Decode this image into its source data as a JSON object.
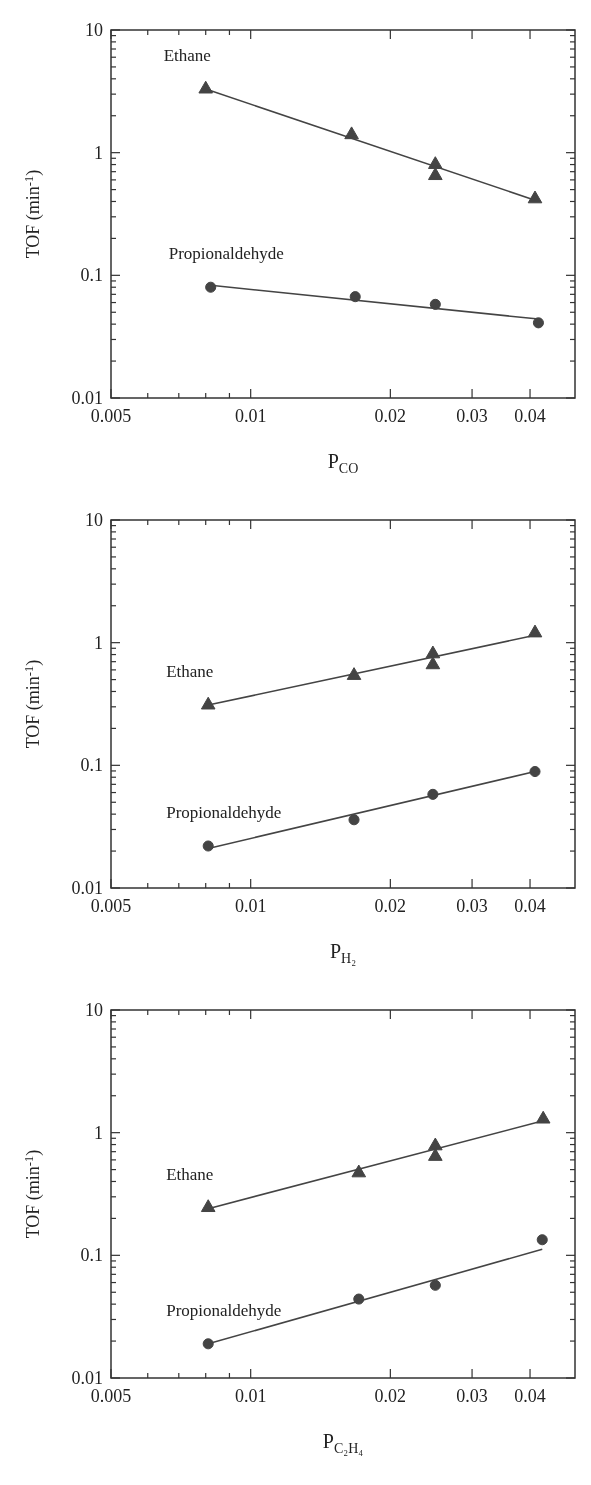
{
  "chart_data": [
    {
      "type": "scatter",
      "xlabel": "P$_{CO}$",
      "ylabel": "TOF (min$^{-1}$)",
      "log": "xy",
      "xlim": [
        0.005,
        0.05
      ],
      "ylim": [
        0.01,
        10
      ],
      "xticks": [
        0.005,
        {
          "value": 0.006,
          "label": null
        },
        {
          "value": 0.007,
          "label": null
        },
        {
          "value": 0.008,
          "label": null
        },
        {
          "value": 0.009,
          "label": null
        },
        0.01,
        0.02,
        0.03,
        0.04
      ],
      "yticks": [
        0.01,
        {
          "value": 0.02,
          "label": null
        },
        {
          "value": 0.03,
          "label": null
        },
        {
          "value": 0.04,
          "label": null
        },
        {
          "value": 0.05,
          "label": null
        },
        {
          "value": 0.06,
          "label": null
        },
        {
          "value": 0.07,
          "label": null
        },
        {
          "value": 0.08,
          "label": null
        },
        {
          "value": 0.09,
          "label": null
        },
        0.1,
        {
          "value": 0.2,
          "label": null
        },
        {
          "value": 0.3,
          "label": null
        },
        {
          "value": 0.4,
          "label": null
        },
        {
          "value": 0.5,
          "label": null
        },
        {
          "value": 0.6,
          "label": null
        },
        {
          "value": 0.7,
          "label": null
        },
        {
          "value": 0.8,
          "label": null
        },
        {
          "value": 0.9,
          "label": null
        },
        1,
        {
          "value": 2,
          "label": null
        },
        {
          "value": 3,
          "label": null
        },
        {
          "value": 4,
          "label": null
        },
        {
          "value": 5,
          "label": null
        },
        {
          "value": 6,
          "label": null
        },
        {
          "value": 7,
          "label": null
        },
        {
          "value": 8,
          "label": null
        },
        {
          "value": 9,
          "label": null
        },
        10
      ],
      "series": [
        {
          "name": "Ethane",
          "marker": "triangle",
          "color": "#444444",
          "x": [
            0.008,
            0.0165,
            0.025,
            0.025,
            0.041
          ],
          "values": [
            3.3,
            1.4,
            0.8,
            0.65,
            0.42
          ]
        },
        {
          "name": "Propionaldehyde",
          "marker": "circle",
          "color": "#444444",
          "x": [
            0.0082,
            0.0168,
            0.025,
            0.0417
          ],
          "values": [
            0.08,
            0.067,
            0.058,
            0.041
          ]
        },
        {
          "type": "line",
          "marker": "none",
          "color": "#444444",
          "x": [
            0.008,
            0.041
          ],
          "values": [
            3.3,
            0.41
          ]
        },
        {
          "type": "line",
          "marker": "none",
          "color": "#444444",
          "x": [
            0.0082,
            0.0417
          ],
          "values": [
            0.083,
            0.044
          ]
        }
      ]
    },
    {
      "type": "scatter",
      "xlabel": "P$_{H₂}$",
      "ylabel": "TOF (min$^{-1}$)",
      "log": "xy",
      "xlim": [
        0.005,
        0.05
      ],
      "ylim": [
        0.01,
        10
      ],
      "xticks": [
        0.005,
        {
          "value": 0.006,
          "label": null
        },
        {
          "value": 0.007,
          "label": null
        },
        {
          "value": 0.008,
          "label": null
        },
        {
          "value": 0.009,
          "label": null
        },
        0.01,
        0.02,
        0.03,
        0.04
      ],
      "yticks": [
        0.01,
        {
          "value": 0.02,
          "label": null
        },
        {
          "value": 0.03,
          "label": null
        },
        {
          "value": 0.04,
          "label": null
        },
        {
          "value": 0.05,
          "label": null
        },
        {
          "value": 0.06,
          "label": null
        },
        {
          "value": 0.07,
          "label": null
        },
        {
          "value": 0.08,
          "label": null
        },
        {
          "value": 0.09,
          "label": null
        },
        0.1,
        {
          "value": 0.2,
          "label": null
        },
        {
          "value": 0.3,
          "label": null
        },
        {
          "value": 0.4,
          "label": null
        },
        {
          "value": 0.5,
          "label": null
        },
        {
          "value": 0.6,
          "label": null
        },
        {
          "value": 0.7,
          "label": null
        },
        {
          "value": 0.8,
          "label": null
        },
        {
          "value": 0.9,
          "label": null
        },
        1,
        {
          "value": 2,
          "label": null
        },
        {
          "value": 3,
          "label": null
        },
        {
          "value": 4,
          "label": null
        },
        {
          "value": 5,
          "label": null
        },
        {
          "value": 6,
          "label": null
        },
        {
          "value": 7,
          "label": null
        },
        {
          "value": 8,
          "label": null
        },
        {
          "value": 9,
          "label": null
        },
        10
      ],
      "series": [
        {
          "name": "Ethane",
          "marker": "triangle",
          "color": "#444444",
          "x": [
            0.0081,
            0.0167,
            0.0247,
            0.0247,
            0.041
          ],
          "values": [
            0.31,
            0.54,
            0.81,
            0.66,
            1.2
          ]
        },
        {
          "name": "Propionaldehyde",
          "marker": "circle",
          "color": "#444444",
          "x": [
            0.0081,
            0.0167,
            0.0247,
            0.041
          ],
          "values": [
            0.022,
            0.036,
            0.058,
            0.089
          ]
        },
        {
          "type": "line",
          "marker": "none",
          "color": "#444444",
          "x": [
            0.0081,
            0.041
          ],
          "values": [
            0.31,
            1.15
          ]
        },
        {
          "type": "line",
          "marker": "none",
          "color": "#444444",
          "x": [
            0.0081,
            0.041
          ],
          "values": [
            0.021,
            0.089
          ]
        }
      ]
    },
    {
      "type": "scatter",
      "xlabel": "P$_{C₂H₄}$",
      "ylabel": "TOF (min$^{-1}$)",
      "log": "xy",
      "xlim": [
        0.005,
        0.05
      ],
      "ylim": [
        0.01,
        10
      ],
      "xticks": [
        0.005,
        {
          "value": 0.006,
          "label": null
        },
        {
          "value": 0.007,
          "label": null
        },
        {
          "value": 0.008,
          "label": null
        },
        {
          "value": 0.009,
          "label": null
        },
        0.01,
        0.02,
        0.03,
        0.04
      ],
      "yticks": [
        0.01,
        {
          "value": 0.02,
          "label": null
        },
        {
          "value": 0.03,
          "label": null
        },
        {
          "value": 0.04,
          "label": null
        },
        {
          "value": 0.05,
          "label": null
        },
        {
          "value": 0.06,
          "label": null
        },
        {
          "value": 0.07,
          "label": null
        },
        {
          "value": 0.08,
          "label": null
        },
        {
          "value": 0.09,
          "label": null
        },
        0.1,
        {
          "value": 0.2,
          "label": null
        },
        {
          "value": 0.3,
          "label": null
        },
        {
          "value": 0.4,
          "label": null
        },
        {
          "value": 0.5,
          "label": null
        },
        {
          "value": 0.6,
          "label": null
        },
        {
          "value": 0.7,
          "label": null
        },
        {
          "value": 0.8,
          "label": null
        },
        {
          "value": 0.9,
          "label": null
        },
        1,
        {
          "value": 2,
          "label": null
        },
        {
          "value": 3,
          "label": null
        },
        {
          "value": 4,
          "label": null
        },
        {
          "value": 5,
          "label": null
        },
        {
          "value": 6,
          "label": null
        },
        {
          "value": 7,
          "label": null
        },
        {
          "value": 8,
          "label": null
        },
        {
          "value": 9,
          "label": null
        },
        10
      ],
      "series": [
        {
          "name": "Ethane",
          "marker": "triangle",
          "color": "#444444",
          "x": [
            0.0081,
            0.0171,
            0.025,
            0.025,
            0.0427
          ],
          "values": [
            0.245,
            0.47,
            0.78,
            0.64,
            1.29
          ]
        },
        {
          "name": "Propionaldehyde",
          "marker": "circle",
          "color": "#444444",
          "x": [
            0.0081,
            0.0171,
            0.025,
            0.0425
          ],
          "values": [
            0.019,
            0.044,
            0.057,
            0.134
          ]
        },
        {
          "type": "line",
          "marker": "none",
          "color": "#444444",
          "x": [
            0.0081,
            0.0427
          ],
          "values": [
            0.24,
            1.25
          ]
        },
        {
          "type": "line",
          "marker": "none",
          "color": "#444444",
          "x": [
            0.0081,
            0.0425
          ],
          "values": [
            0.019,
            0.112
          ]
        }
      ]
    }
  ]
}
